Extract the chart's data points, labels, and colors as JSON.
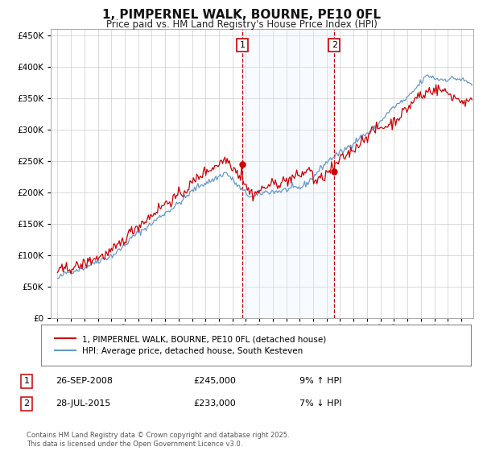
{
  "title": "1, PIMPERNEL WALK, BOURNE, PE10 0FL",
  "subtitle": "Price paid vs. HM Land Registry's House Price Index (HPI)",
  "legend_line1": "1, PIMPERNEL WALK, BOURNE, PE10 0FL (detached house)",
  "legend_line2": "HPI: Average price, detached house, South Kesteven",
  "sale1_date": "26-SEP-2008",
  "sale1_price": 245000,
  "sale1_pct": "9% ↑ HPI",
  "sale2_date": "28-JUL-2015",
  "sale2_price": 233000,
  "sale2_pct": "7% ↓ HPI",
  "footnote": "Contains HM Land Registry data © Crown copyright and database right 2025.\nThis data is licensed under the Open Government Licence v3.0.",
  "red_color": "#cc0000",
  "blue_color": "#6699cc",
  "shade_color": "#ddeeff",
  "grid_color": "#cccccc",
  "bg_color": "#ffffff",
  "yticks": [
    0,
    50000,
    100000,
    150000,
    200000,
    250000,
    300000,
    350000,
    400000,
    450000
  ],
  "sale1_x": 2008.73,
  "sale2_x": 2015.57,
  "xstart": 1995,
  "xend": 2025
}
